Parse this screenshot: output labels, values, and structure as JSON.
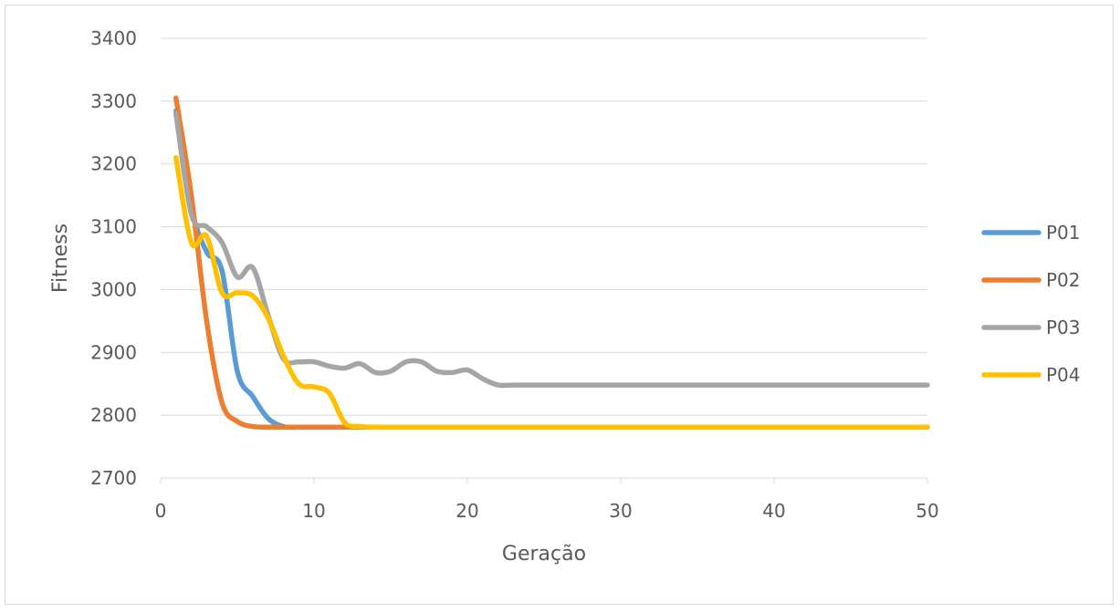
{
  "chart_data": {
    "type": "line",
    "title": "",
    "xlabel": "Geração",
    "ylabel": "Fitness",
    "xlim": [
      0,
      50
    ],
    "ylim": [
      2700,
      3400
    ],
    "xticks": [
      0,
      10,
      20,
      30,
      40,
      50
    ],
    "yticks": [
      2700,
      2800,
      2900,
      3000,
      3100,
      3200,
      3300,
      3400
    ],
    "grid": "horizontal",
    "legend_position": "right",
    "series": [
      {
        "name": "P01",
        "color": "#5b9bd5",
        "points": [
          [
            1,
            3285
          ],
          [
            2,
            3130
          ],
          [
            3,
            3060
          ],
          [
            4,
            3030
          ],
          [
            5,
            2870
          ],
          [
            6,
            2830
          ],
          [
            7,
            2795
          ],
          [
            8,
            2782
          ],
          [
            9,
            2781
          ],
          [
            10,
            2781
          ],
          [
            12,
            2781
          ],
          [
            15,
            2781
          ],
          [
            20,
            2781
          ],
          [
            30,
            2781
          ],
          [
            40,
            2781
          ],
          [
            50,
            2781
          ]
        ]
      },
      {
        "name": "P02",
        "color": "#ed7d31",
        "points": [
          [
            1,
            3305
          ],
          [
            2,
            3150
          ],
          [
            3,
            2950
          ],
          [
            4,
            2820
          ],
          [
            5,
            2790
          ],
          [
            6,
            2782
          ],
          [
            7,
            2781
          ],
          [
            8,
            2781
          ],
          [
            10,
            2781
          ],
          [
            15,
            2781
          ],
          [
            20,
            2781
          ],
          [
            30,
            2781
          ],
          [
            40,
            2781
          ],
          [
            50,
            2781
          ]
        ]
      },
      {
        "name": "P03",
        "color": "#a5a5a5",
        "points": [
          [
            1,
            3280
          ],
          [
            2,
            3120
          ],
          [
            3,
            3100
          ],
          [
            4,
            3075
          ],
          [
            5,
            3020
          ],
          [
            6,
            3035
          ],
          [
            7,
            2960
          ],
          [
            8,
            2890
          ],
          [
            9,
            2885
          ],
          [
            10,
            2885
          ],
          [
            11,
            2878
          ],
          [
            12,
            2875
          ],
          [
            13,
            2882
          ],
          [
            14,
            2868
          ],
          [
            15,
            2870
          ],
          [
            16,
            2885
          ],
          [
            17,
            2885
          ],
          [
            18,
            2870
          ],
          [
            19,
            2868
          ],
          [
            20,
            2872
          ],
          [
            21,
            2858
          ],
          [
            22,
            2848
          ],
          [
            23,
            2848
          ],
          [
            25,
            2848
          ],
          [
            30,
            2848
          ],
          [
            40,
            2848
          ],
          [
            50,
            2848
          ]
        ]
      },
      {
        "name": "P04",
        "color": "#ffc000",
        "points": [
          [
            1,
            3210
          ],
          [
            2,
            3075
          ],
          [
            3,
            3085
          ],
          [
            4,
            2995
          ],
          [
            5,
            2995
          ],
          [
            6,
            2990
          ],
          [
            7,
            2955
          ],
          [
            8,
            2895
          ],
          [
            9,
            2850
          ],
          [
            10,
            2845
          ],
          [
            11,
            2835
          ],
          [
            12,
            2788
          ],
          [
            13,
            2782
          ],
          [
            14,
            2781
          ],
          [
            15,
            2781
          ],
          [
            20,
            2781
          ],
          [
            30,
            2781
          ],
          [
            40,
            2781
          ],
          [
            50,
            2781
          ]
        ]
      }
    ]
  }
}
